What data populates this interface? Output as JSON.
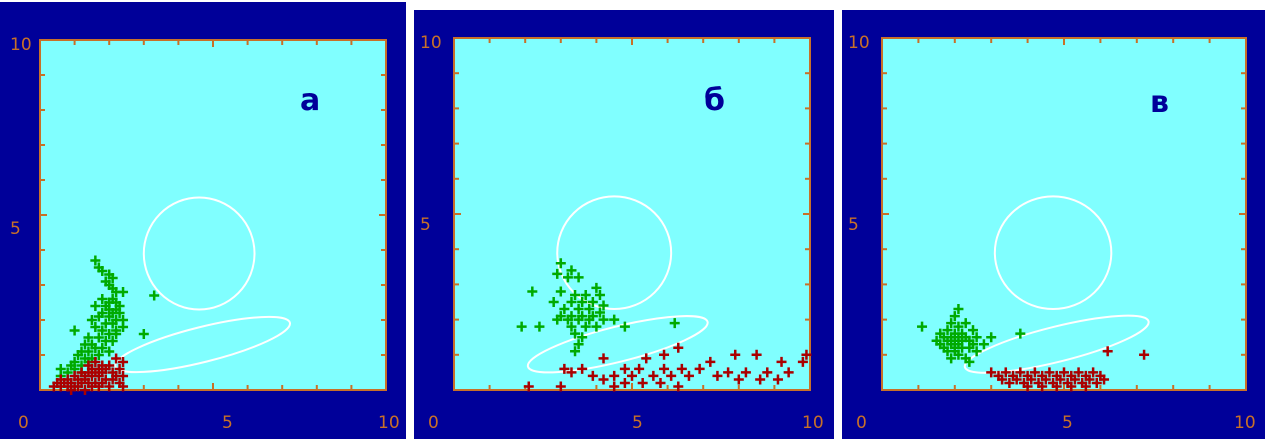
{
  "colors": {
    "frame": "#000099",
    "plot_bg": "#80ffff",
    "axis": "#c87028",
    "tick_label": "#c87028",
    "panel_label": "#000099",
    "series_green": "#00aa00",
    "series_red": "#aa0000",
    "ellipse": "#ffffff"
  },
  "chart_data": [
    {
      "type": "scatter",
      "panel_label": "а",
      "xlim": [
        0,
        10
      ],
      "ylim": [
        0,
        10
      ],
      "x_ticks": [
        "0",
        "5",
        "10"
      ],
      "y_ticks": [
        "10",
        "5"
      ],
      "ellipses": [
        {
          "cx": 4.6,
          "cy": 3.9,
          "rx": 1.6,
          "ry": 1.6
        },
        {
          "cx": 4.7,
          "cy": 1.3,
          "rx": 2.6,
          "ry": 0.5,
          "rotate": -14
        }
      ],
      "series": [
        {
          "color": "green",
          "points": [
            [
              1.6,
              3.7
            ],
            [
              1.7,
              3.5
            ],
            [
              1.8,
              3.4
            ],
            [
              2.0,
              3.3
            ],
            [
              2.1,
              3.2
            ],
            [
              1.9,
              3.1
            ],
            [
              2.0,
              3.0
            ],
            [
              2.1,
              2.9
            ],
            [
              2.2,
              2.8
            ],
            [
              2.4,
              2.8
            ],
            [
              3.3,
              2.7
            ],
            [
              1.8,
              2.6
            ],
            [
              2.1,
              2.6
            ],
            [
              2.0,
              2.5
            ],
            [
              2.2,
              2.5
            ],
            [
              1.6,
              2.4
            ],
            [
              1.9,
              2.4
            ],
            [
              2.3,
              2.4
            ],
            [
              2.0,
              2.3
            ],
            [
              2.2,
              2.3
            ],
            [
              1.8,
              2.2
            ],
            [
              2.1,
              2.2
            ],
            [
              2.3,
              2.2
            ],
            [
              1.7,
              2.1
            ],
            [
              2.0,
              2.1
            ],
            [
              2.2,
              2.0
            ],
            [
              2.4,
              2.0
            ],
            [
              1.5,
              2.0
            ],
            [
              1.9,
              1.9
            ],
            [
              2.1,
              1.9
            ],
            [
              2.4,
              1.8
            ],
            [
              1.6,
              1.8
            ],
            [
              2.2,
              1.7
            ],
            [
              1.0,
              1.7
            ],
            [
              1.8,
              1.7
            ],
            [
              2.0,
              1.6
            ],
            [
              2.2,
              1.6
            ],
            [
              3.0,
              1.6
            ],
            [
              1.4,
              1.5
            ],
            [
              1.7,
              1.5
            ],
            [
              1.9,
              1.4
            ],
            [
              2.1,
              1.4
            ],
            [
              1.3,
              1.3
            ],
            [
              1.5,
              1.3
            ],
            [
              1.6,
              1.2
            ],
            [
              1.8,
              1.2
            ],
            [
              1.2,
              1.1
            ],
            [
              1.4,
              1.1
            ],
            [
              2.0,
              1.1
            ],
            [
              1.1,
              1.0
            ],
            [
              1.7,
              1.0
            ],
            [
              1.3,
              0.9
            ],
            [
              1.5,
              0.9
            ],
            [
              1.0,
              0.8
            ],
            [
              1.4,
              0.8
            ],
            [
              0.9,
              0.7
            ],
            [
              1.2,
              0.7
            ],
            [
              0.6,
              0.6
            ],
            [
              1.0,
              0.6
            ],
            [
              0.8,
              0.5
            ],
            [
              1.2,
              0.5
            ],
            [
              0.6,
              0.4
            ]
          ]
        },
        {
          "color": "red",
          "points": [
            [
              2.2,
              0.9
            ],
            [
              2.4,
              0.8
            ],
            [
              1.6,
              0.8
            ],
            [
              1.8,
              0.7
            ],
            [
              2.0,
              0.7
            ],
            [
              1.4,
              0.7
            ],
            [
              2.3,
              0.6
            ],
            [
              1.5,
              0.6
            ],
            [
              1.7,
              0.6
            ],
            [
              1.9,
              0.6
            ],
            [
              2.1,
              0.5
            ],
            [
              1.2,
              0.5
            ],
            [
              1.4,
              0.5
            ],
            [
              1.6,
              0.5
            ],
            [
              1.8,
              0.5
            ],
            [
              2.2,
              0.4
            ],
            [
              2.4,
              0.4
            ],
            [
              1.0,
              0.4
            ],
            [
              1.3,
              0.4
            ],
            [
              1.5,
              0.4
            ],
            [
              1.7,
              0.4
            ],
            [
              1.9,
              0.3
            ],
            [
              2.1,
              0.3
            ],
            [
              0.6,
              0.3
            ],
            [
              0.8,
              0.3
            ],
            [
              1.1,
              0.3
            ],
            [
              1.3,
              0.3
            ],
            [
              1.6,
              0.2
            ],
            [
              1.8,
              0.2
            ],
            [
              2.3,
              0.2
            ],
            [
              0.5,
              0.2
            ],
            [
              0.7,
              0.2
            ],
            [
              0.9,
              0.2
            ],
            [
              1.2,
              0.2
            ],
            [
              1.4,
              0.2
            ],
            [
              1.0,
              0.1
            ],
            [
              0.6,
              0.1
            ],
            [
              0.8,
              0.1
            ],
            [
              1.1,
              0.1
            ],
            [
              1.5,
              0.1
            ],
            [
              1.7,
              0.1
            ],
            [
              2.0,
              0.1
            ],
            [
              2.4,
              0.1
            ],
            [
              0.4,
              0.1
            ],
            [
              1.3,
              0.0
            ],
            [
              0.9,
              0.0
            ]
          ]
        }
      ]
    },
    {
      "type": "scatter",
      "panel_label": "б",
      "xlim": [
        0,
        10
      ],
      "ylim": [
        0,
        10
      ],
      "x_ticks": [
        "0",
        "5",
        "10"
      ],
      "y_ticks": [
        "10",
        "5"
      ],
      "ellipses": [
        {
          "cx": 4.5,
          "cy": 3.9,
          "rx": 1.6,
          "ry": 1.6
        },
        {
          "cx": 4.6,
          "cy": 1.3,
          "rx": 2.6,
          "ry": 0.5,
          "rotate": -14
        }
      ],
      "series": [
        {
          "color": "green",
          "points": [
            [
              3.0,
              3.6
            ],
            [
              3.3,
              3.4
            ],
            [
              2.9,
              3.3
            ],
            [
              3.2,
              3.2
            ],
            [
              3.5,
              3.2
            ],
            [
              2.2,
              2.8
            ],
            [
              3.0,
              2.8
            ],
            [
              4.0,
              2.9
            ],
            [
              3.4,
              2.7
            ],
            [
              3.7,
              2.7
            ],
            [
              4.1,
              2.7
            ],
            [
              2.8,
              2.5
            ],
            [
              3.3,
              2.5
            ],
            [
              3.6,
              2.5
            ],
            [
              3.9,
              2.5
            ],
            [
              4.2,
              2.4
            ],
            [
              3.1,
              2.3
            ],
            [
              3.5,
              2.3
            ],
            [
              3.8,
              2.3
            ],
            [
              4.1,
              2.2
            ],
            [
              3.0,
              2.1
            ],
            [
              3.3,
              2.1
            ],
            [
              3.6,
              2.1
            ],
            [
              3.9,
              2.1
            ],
            [
              2.9,
              2.0
            ],
            [
              3.2,
              2.0
            ],
            [
              3.5,
              2.0
            ],
            [
              3.8,
              2.0
            ],
            [
              4.2,
              2.0
            ],
            [
              4.5,
              2.0
            ],
            [
              1.9,
              1.8
            ],
            [
              2.4,
              1.8
            ],
            [
              3.3,
              1.8
            ],
            [
              3.7,
              1.8
            ],
            [
              4.0,
              1.8
            ],
            [
              4.8,
              1.8
            ],
            [
              6.2,
              1.9
            ],
            [
              3.4,
              1.6
            ],
            [
              3.6,
              1.5
            ],
            [
              3.5,
              1.3
            ],
            [
              3.4,
              1.1
            ]
          ]
        },
        {
          "color": "red",
          "points": [
            [
              6.3,
              1.2
            ],
            [
              5.9,
              1.0
            ],
            [
              7.9,
              1.0
            ],
            [
              8.5,
              1.0
            ],
            [
              9.9,
              1.0
            ],
            [
              4.2,
              0.9
            ],
            [
              5.4,
              0.9
            ],
            [
              7.2,
              0.8
            ],
            [
              9.2,
              0.8
            ],
            [
              9.8,
              0.8
            ],
            [
              3.1,
              0.6
            ],
            [
              3.6,
              0.6
            ],
            [
              4.8,
              0.6
            ],
            [
              5.2,
              0.6
            ],
            [
              5.9,
              0.6
            ],
            [
              6.4,
              0.6
            ],
            [
              6.9,
              0.6
            ],
            [
              7.7,
              0.5
            ],
            [
              8.2,
              0.5
            ],
            [
              8.8,
              0.5
            ],
            [
              9.4,
              0.5
            ],
            [
              3.3,
              0.5
            ],
            [
              3.9,
              0.4
            ],
            [
              4.5,
              0.4
            ],
            [
              5.0,
              0.4
            ],
            [
              5.6,
              0.4
            ],
            [
              6.1,
              0.4
            ],
            [
              6.6,
              0.4
            ],
            [
              7.4,
              0.4
            ],
            [
              8.0,
              0.3
            ],
            [
              8.6,
              0.3
            ],
            [
              9.1,
              0.3
            ],
            [
              4.2,
              0.3
            ],
            [
              4.8,
              0.2
            ],
            [
              5.3,
              0.2
            ],
            [
              5.8,
              0.2
            ],
            [
              6.3,
              0.1
            ],
            [
              2.1,
              0.1
            ],
            [
              3.0,
              0.1
            ],
            [
              4.5,
              0.1
            ]
          ]
        }
      ]
    },
    {
      "type": "scatter",
      "panel_label": "в",
      "xlim": [
        0,
        10
      ],
      "ylim": [
        0,
        10
      ],
      "x_ticks": [
        "0",
        "5",
        "10"
      ],
      "y_ticks": [
        "10",
        "5"
      ],
      "ellipses": [
        {
          "cx": 4.7,
          "cy": 3.9,
          "rx": 1.6,
          "ry": 1.6
        },
        {
          "cx": 4.8,
          "cy": 1.3,
          "rx": 2.6,
          "ry": 0.5,
          "rotate": -14
        }
      ],
      "series": [
        {
          "color": "green",
          "points": [
            [
              2.1,
              2.3
            ],
            [
              2.0,
              2.1
            ],
            [
              1.9,
              1.9
            ],
            [
              2.3,
              1.9
            ],
            [
              1.1,
              1.8
            ],
            [
              2.1,
              1.8
            ],
            [
              2.5,
              1.7
            ],
            [
              1.6,
              1.6
            ],
            [
              1.8,
              1.7
            ],
            [
              2.0,
              1.6
            ],
            [
              2.2,
              1.6
            ],
            [
              1.7,
              1.5
            ],
            [
              1.9,
              1.5
            ],
            [
              2.1,
              1.5
            ],
            [
              2.3,
              1.5
            ],
            [
              1.5,
              1.4
            ],
            [
              1.8,
              1.4
            ],
            [
              2.0,
              1.4
            ],
            [
              2.2,
              1.4
            ],
            [
              2.4,
              1.4
            ],
            [
              1.6,
              1.3
            ],
            [
              1.9,
              1.3
            ],
            [
              2.1,
              1.3
            ],
            [
              2.5,
              1.3
            ],
            [
              2.8,
              1.3
            ],
            [
              2.6,
              1.5
            ],
            [
              3.8,
              1.6
            ],
            [
              3.0,
              1.5
            ],
            [
              1.7,
              1.2
            ],
            [
              2.0,
              1.2
            ],
            [
              2.2,
              1.2
            ],
            [
              2.4,
              1.2
            ],
            [
              1.8,
              1.1
            ],
            [
              2.0,
              1.1
            ],
            [
              2.6,
              1.1
            ],
            [
              2.1,
              1.0
            ],
            [
              1.9,
              0.9
            ],
            [
              2.3,
              0.9
            ],
            [
              2.4,
              0.8
            ]
          ]
        },
        {
          "color": "red",
          "points": [
            [
              6.2,
              1.1
            ],
            [
              7.2,
              1.0
            ],
            [
              3.0,
              0.5
            ],
            [
              3.4,
              0.5
            ],
            [
              3.8,
              0.5
            ],
            [
              4.2,
              0.5
            ],
            [
              4.6,
              0.5
            ],
            [
              5.0,
              0.5
            ],
            [
              5.4,
              0.5
            ],
            [
              5.8,
              0.5
            ],
            [
              3.2,
              0.4
            ],
            [
              3.6,
              0.4
            ],
            [
              4.0,
              0.4
            ],
            [
              4.4,
              0.4
            ],
            [
              4.8,
              0.4
            ],
            [
              5.2,
              0.4
            ],
            [
              5.6,
              0.4
            ],
            [
              6.0,
              0.4
            ],
            [
              3.3,
              0.3
            ],
            [
              3.7,
              0.3
            ],
            [
              4.1,
              0.3
            ],
            [
              4.5,
              0.3
            ],
            [
              4.9,
              0.3
            ],
            [
              5.3,
              0.3
            ],
            [
              5.7,
              0.3
            ],
            [
              6.1,
              0.3
            ],
            [
              3.5,
              0.2
            ],
            [
              3.9,
              0.2
            ],
            [
              4.3,
              0.2
            ],
            [
              4.7,
              0.2
            ],
            [
              5.1,
              0.2
            ],
            [
              5.5,
              0.2
            ],
            [
              5.9,
              0.2
            ],
            [
              4.0,
              0.1
            ],
            [
              4.4,
              0.1
            ],
            [
              4.8,
              0.1
            ],
            [
              5.2,
              0.1
            ],
            [
              5.6,
              0.1
            ]
          ]
        }
      ]
    }
  ]
}
